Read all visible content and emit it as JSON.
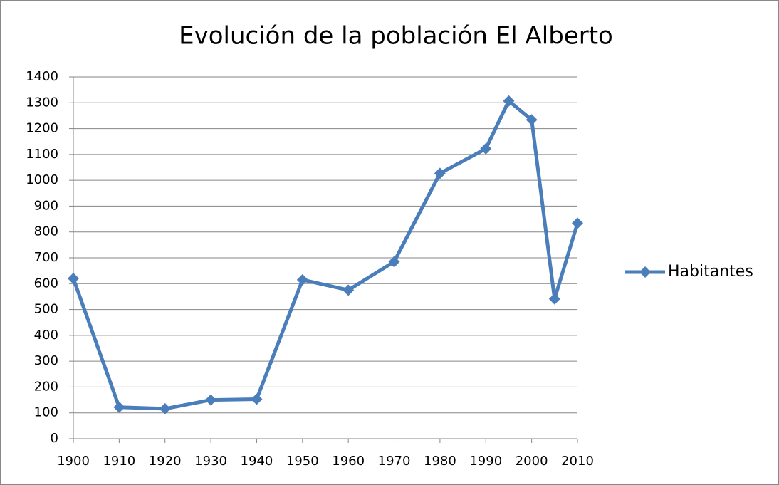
{
  "chart_data": {
    "type": "line",
    "title": "Evolución de la población El Alberto",
    "x": [
      1900,
      1910,
      1920,
      1930,
      1940,
      1950,
      1960,
      1970,
      1980,
      1990,
      1995,
      2000,
      2005,
      2010
    ],
    "series": [
      {
        "name": "Habitantes",
        "color": "#4a7ebb",
        "values": [
          620,
          122,
          116,
          150,
          153,
          615,
          575,
          685,
          1027,
          1122,
          1307,
          1234,
          541,
          834
        ]
      }
    ],
    "xlim": [
      1900,
      2010
    ],
    "xticks": [
      1900,
      1910,
      1920,
      1930,
      1940,
      1950,
      1960,
      1970,
      1980,
      1990,
      2000,
      2010
    ],
    "ylim": [
      0,
      1400
    ],
    "yticks": [
      0,
      100,
      200,
      300,
      400,
      500,
      600,
      700,
      800,
      900,
      1000,
      1100,
      1200,
      1300,
      1400
    ],
    "grid": true,
    "legend": "right"
  }
}
